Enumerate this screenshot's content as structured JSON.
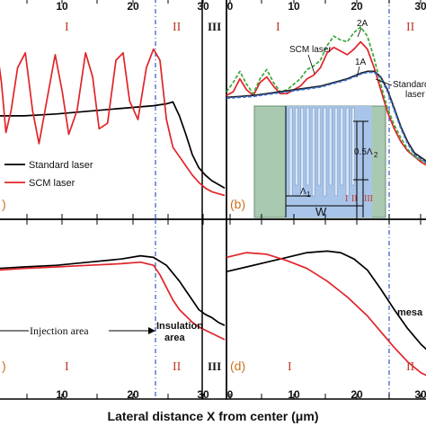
{
  "chart_data": [
    {
      "type": "line",
      "panel": "a",
      "panel_label": ")",
      "xlim": [
        -4,
        31
      ],
      "top_ticks": [
        "10",
        "20",
        "30"
      ],
      "region_labels": [
        "I",
        "II",
        "III"
      ],
      "series": [
        {
          "name": "Standard laser",
          "color": "#000000",
          "x": [
            -4,
            0,
            5,
            10,
            15,
            20,
            22,
            23,
            24,
            25,
            26,
            27,
            28,
            29,
            30,
            31
          ],
          "y": [
            0.52,
            0.52,
            0.53,
            0.545,
            0.56,
            0.575,
            0.585,
            0.595,
            0.52,
            0.42,
            0.31,
            0.24,
            0.2,
            0.17,
            0.15,
            0.13
          ]
        },
        {
          "name": "SCM laser",
          "color": "#e0242a",
          "x": [
            -4,
            -3.5,
            -2.8,
            -2,
            -1,
            0.2,
            1.3,
            2.3,
            3.5,
            4.8,
            5.9,
            6.9,
            8.2,
            9.5,
            10.6,
            11.6,
            12.9,
            14.2,
            15.3,
            16.3,
            17.6,
            18.9,
            20,
            21,
            22,
            23,
            24,
            25,
            26,
            27,
            28,
            29,
            30,
            31
          ],
          "y": [
            0.83,
            0.7,
            0.43,
            0.55,
            0.78,
            0.86,
            0.55,
            0.37,
            0.6,
            0.85,
            0.65,
            0.42,
            0.55,
            0.86,
            0.73,
            0.45,
            0.48,
            0.82,
            0.86,
            0.6,
            0.5,
            0.78,
            0.88,
            0.82,
            0.5,
            0.35,
            0.3,
            0.25,
            0.2,
            0.16,
            0.13,
            0.11,
            0.1,
            0.09
          ]
        }
      ]
    },
    {
      "type": "line",
      "panel": "b",
      "panel_label": "(b)",
      "xlim": [
        0,
        30
      ],
      "top_ticks": [
        "0",
        "10",
        "20",
        "30"
      ],
      "region_labels": [
        "I",
        "II"
      ],
      "curve_labels": [
        "SCM laser",
        "2A",
        "1A",
        "Standard",
        "laser"
      ],
      "series": [
        {
          "name": "SCM laser",
          "color": "#e0242a",
          "x": [
            0,
            1,
            2,
            3,
            4,
            5,
            6,
            7,
            8,
            9,
            10,
            11,
            12,
            13,
            14,
            15,
            16,
            17,
            18,
            19,
            20,
            21,
            22,
            23,
            24,
            25,
            26,
            27,
            28,
            29,
            30
          ],
          "y": [
            0.63,
            0.65,
            0.72,
            0.66,
            0.63,
            0.7,
            0.73,
            0.68,
            0.64,
            0.64,
            0.66,
            0.68,
            0.72,
            0.74,
            0.78,
            0.86,
            0.89,
            0.87,
            0.85,
            0.88,
            0.92,
            0.88,
            0.78,
            0.66,
            0.54,
            0.45,
            0.38,
            0.33,
            0.3,
            0.27,
            0.25
          ]
        },
        {
          "name": "2A",
          "color": "#3aa83a",
          "x": [
            0,
            1,
            2,
            3,
            4,
            5,
            6,
            7,
            8,
            9,
            10,
            11,
            12,
            13,
            14,
            15,
            16,
            17,
            18,
            19,
            20,
            21,
            22,
            23,
            24,
            25,
            26,
            27,
            28,
            29,
            30
          ],
          "y": [
            0.65,
            0.7,
            0.76,
            0.69,
            0.64,
            0.72,
            0.77,
            0.7,
            0.65,
            0.66,
            0.69,
            0.72,
            0.77,
            0.79,
            0.82,
            0.9,
            0.95,
            0.93,
            0.92,
            0.97,
            1.0,
            0.95,
            0.83,
            0.69,
            0.56,
            0.47,
            0.4,
            0.34,
            0.3,
            0.28,
            0.26
          ]
        },
        {
          "name": "Standard laser",
          "color": "#1a1a1a",
          "x": [
            0,
            2,
            4,
            6,
            8,
            10,
            12,
            14,
            16,
            18,
            20,
            21,
            22,
            23,
            24,
            25,
            26,
            27,
            28,
            30
          ],
          "y": [
            0.62,
            0.625,
            0.63,
            0.64,
            0.65,
            0.66,
            0.67,
            0.68,
            0.7,
            0.72,
            0.75,
            0.76,
            0.76,
            0.73,
            0.66,
            0.56,
            0.46,
            0.38,
            0.32,
            0.27
          ]
        },
        {
          "name": "1A",
          "color": "#3b6fd1",
          "x": [
            0,
            2,
            4,
            6,
            8,
            10,
            12,
            14,
            16,
            18,
            20,
            21,
            22,
            23,
            24,
            25,
            26,
            27,
            28,
            30
          ],
          "y": [
            0.615,
            0.62,
            0.625,
            0.635,
            0.645,
            0.655,
            0.665,
            0.675,
            0.695,
            0.715,
            0.745,
            0.755,
            0.755,
            0.725,
            0.65,
            0.55,
            0.45,
            0.37,
            0.31,
            0.26
          ]
        }
      ],
      "inset": {
        "labels": [
          "0.5Λ",
          "2",
          "Λ",
          "1",
          "W",
          "I",
          "II",
          "III"
        ]
      }
    },
    {
      "type": "line",
      "panel": "c",
      "panel_label": ")",
      "xlim": [
        -4,
        31
      ],
      "bottom_ticks": [
        "10",
        "20",
        "30"
      ],
      "region_labels": [
        "I",
        "II",
        "III"
      ],
      "annotations": [
        "Injection area",
        "Insulation",
        "area"
      ],
      "series": [
        {
          "name": "Standard laser",
          "color": "#000000",
          "x": [
            -4,
            0,
            5,
            10,
            15,
            18,
            20,
            22,
            24,
            25,
            26,
            27,
            28,
            29,
            30,
            31
          ],
          "y": [
            0.78,
            0.79,
            0.8,
            0.82,
            0.84,
            0.86,
            0.85,
            0.8,
            0.7,
            0.64,
            0.58,
            0.52,
            0.49,
            0.47,
            0.44,
            0.42
          ]
        },
        {
          "name": "SCM laser",
          "color": "#e0242a",
          "x": [
            -4,
            0,
            5,
            10,
            15,
            18,
            20,
            21,
            22,
            23,
            24,
            25,
            26,
            27,
            28,
            29,
            30,
            31
          ],
          "y": [
            0.77,
            0.78,
            0.79,
            0.8,
            0.81,
            0.82,
            0.8,
            0.74,
            0.66,
            0.58,
            0.52,
            0.48,
            0.44,
            0.41,
            0.39,
            0.37,
            0.35,
            0.33
          ]
        }
      ]
    },
    {
      "type": "line",
      "panel": "d",
      "panel_label": "(d)",
      "xlim": [
        0,
        30
      ],
      "bottom_ticks": [
        "0",
        "10",
        "20",
        "30"
      ],
      "region_labels": [
        "I",
        "II"
      ],
      "annotations": [
        "mesa"
      ],
      "series": [
        {
          "name": "Standard laser",
          "color": "#000000",
          "x": [
            0,
            3,
            6,
            9,
            12,
            15,
            17,
            19,
            21,
            23,
            25,
            27,
            29,
            30
          ],
          "y": [
            0.76,
            0.79,
            0.82,
            0.85,
            0.88,
            0.89,
            0.88,
            0.84,
            0.77,
            0.65,
            0.52,
            0.4,
            0.3,
            0.26
          ]
        },
        {
          "name": "SCM laser",
          "color": "#e0242a",
          "x": [
            0,
            3,
            6,
            9,
            12,
            15,
            18,
            21,
            23,
            25,
            27,
            29,
            30
          ],
          "y": [
            0.85,
            0.88,
            0.87,
            0.83,
            0.78,
            0.7,
            0.6,
            0.48,
            0.38,
            0.28,
            0.19,
            0.12,
            0.1
          ]
        }
      ]
    }
  ],
  "legend": {
    "standard": "Standard laser",
    "scm": "SCM laser"
  },
  "xlabel": "Lateral distance X from center (μm)"
}
